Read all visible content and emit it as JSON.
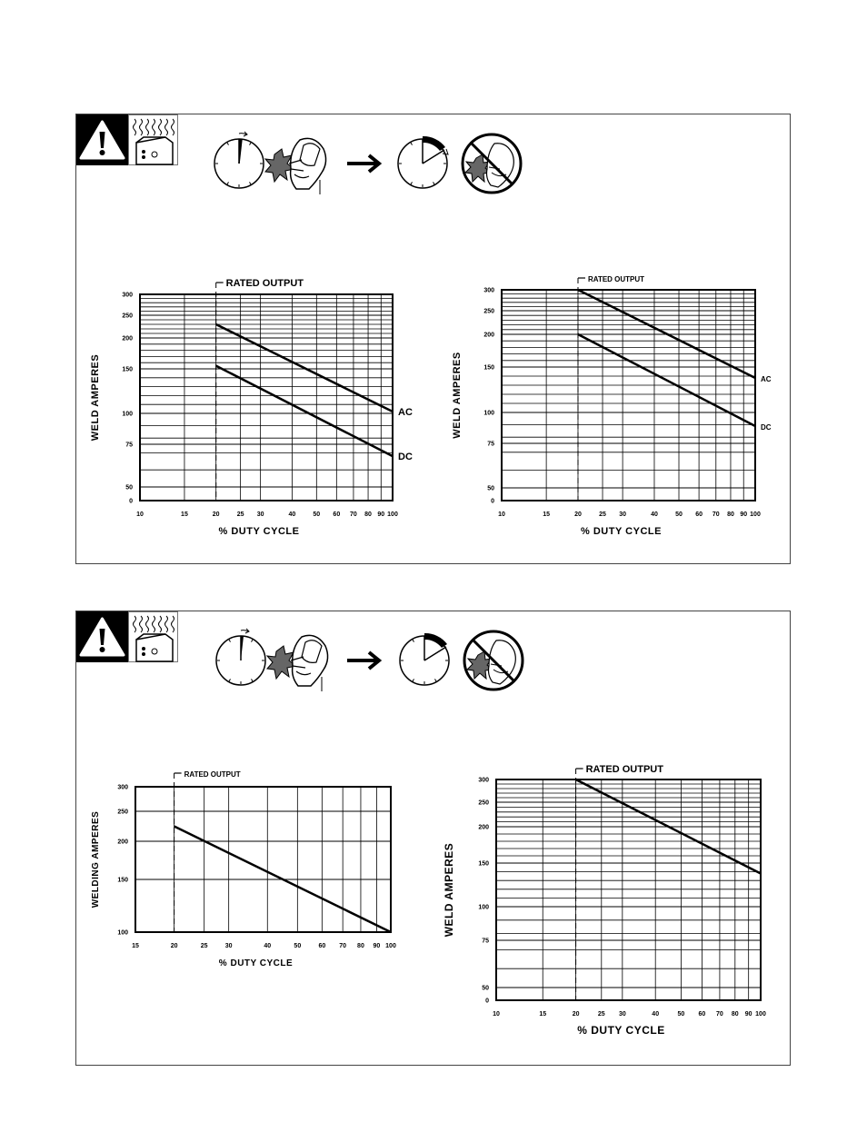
{
  "panels": [
    {
      "icons": [
        "warning-triangle-icon",
        "hot-equipment-icon",
        "duty-cycle-clock-icon",
        "welder-icon",
        "right-arrow-icon",
        "no-welding-icon"
      ],
      "charts": [
        0,
        1
      ]
    },
    {
      "icons": [
        "warning-triangle-icon",
        "hot-equipment-icon",
        "duty-cycle-clock-icon",
        "welder-icon",
        "right-arrow-icon",
        "no-welding-icon"
      ],
      "charts": [
        2,
        3
      ]
    }
  ],
  "chart_data": [
    {
      "type": "line",
      "xscale": "log",
      "xlabel": "% DUTY CYCLE",
      "ylabel": "WELD AMPERES",
      "xlim": [
        10,
        100
      ],
      "ylim": [
        0,
        300
      ],
      "xticks": [
        10,
        15,
        20,
        25,
        30,
        40,
        50,
        60,
        70,
        80,
        90,
        100
      ],
      "yticks": [
        0,
        50,
        75,
        100,
        150,
        200,
        250,
        300
      ],
      "grid": true,
      "annotation": "RATED OUTPUT",
      "rated_x": 20,
      "series": [
        {
          "name": "AC",
          "x": [
            20,
            100
          ],
          "y": [
            230,
            102
          ]
        },
        {
          "name": "DC",
          "x": [
            20,
            100
          ],
          "y": [
            155,
            68
          ]
        }
      ]
    },
    {
      "type": "line",
      "xscale": "log",
      "xlabel": "% DUTY CYCLE",
      "ylabel": "WELD AMPERES",
      "xlim": [
        10,
        100
      ],
      "ylim": [
        0,
        300
      ],
      "xticks": [
        10,
        15,
        20,
        25,
        30,
        40,
        50,
        60,
        70,
        80,
        90,
        100
      ],
      "yticks": [
        0,
        50,
        75,
        100,
        150,
        200,
        250,
        300
      ],
      "grid": true,
      "annotation": "RATED OUTPUT",
      "rated_x": 20,
      "series": [
        {
          "name": "AC",
          "x": [
            20,
            100
          ],
          "y": [
            300,
            138
          ]
        },
        {
          "name": "DC",
          "x": [
            20,
            100
          ],
          "y": [
            200,
            89
          ]
        }
      ]
    },
    {
      "type": "line",
      "xscale": "log",
      "xlabel": "% DUTY CYCLE",
      "ylabel": "WELDING AMPERES",
      "xlim": [
        15,
        100
      ],
      "ylim": [
        100,
        300
      ],
      "xticks": [
        15,
        20,
        25,
        30,
        40,
        50,
        60,
        70,
        80,
        90,
        100
      ],
      "yticks": [
        100,
        150,
        200,
        250,
        300
      ],
      "grid": true,
      "annotation": "RATED OUTPUT",
      "rated_x": 20,
      "series": [
        {
          "x": [
            20,
            100
          ],
          "y": [
            225,
            100
          ]
        }
      ]
    },
    {
      "type": "line",
      "xscale": "log",
      "xlabel": "% DUTY CYCLE",
      "ylabel": "WELD AMPERES",
      "xlim": [
        10,
        100
      ],
      "ylim": [
        0,
        300
      ],
      "xticks": [
        10,
        15,
        20,
        25,
        30,
        40,
        50,
        60,
        70,
        80,
        90,
        100
      ],
      "yticks": [
        0,
        50,
        75,
        100,
        150,
        200,
        250,
        300
      ],
      "grid": true,
      "annotation": "RATED OUTPUT",
      "rated_x": 20,
      "series": [
        {
          "x": [
            20,
            100
          ],
          "y": [
            300,
            138
          ]
        }
      ]
    }
  ]
}
